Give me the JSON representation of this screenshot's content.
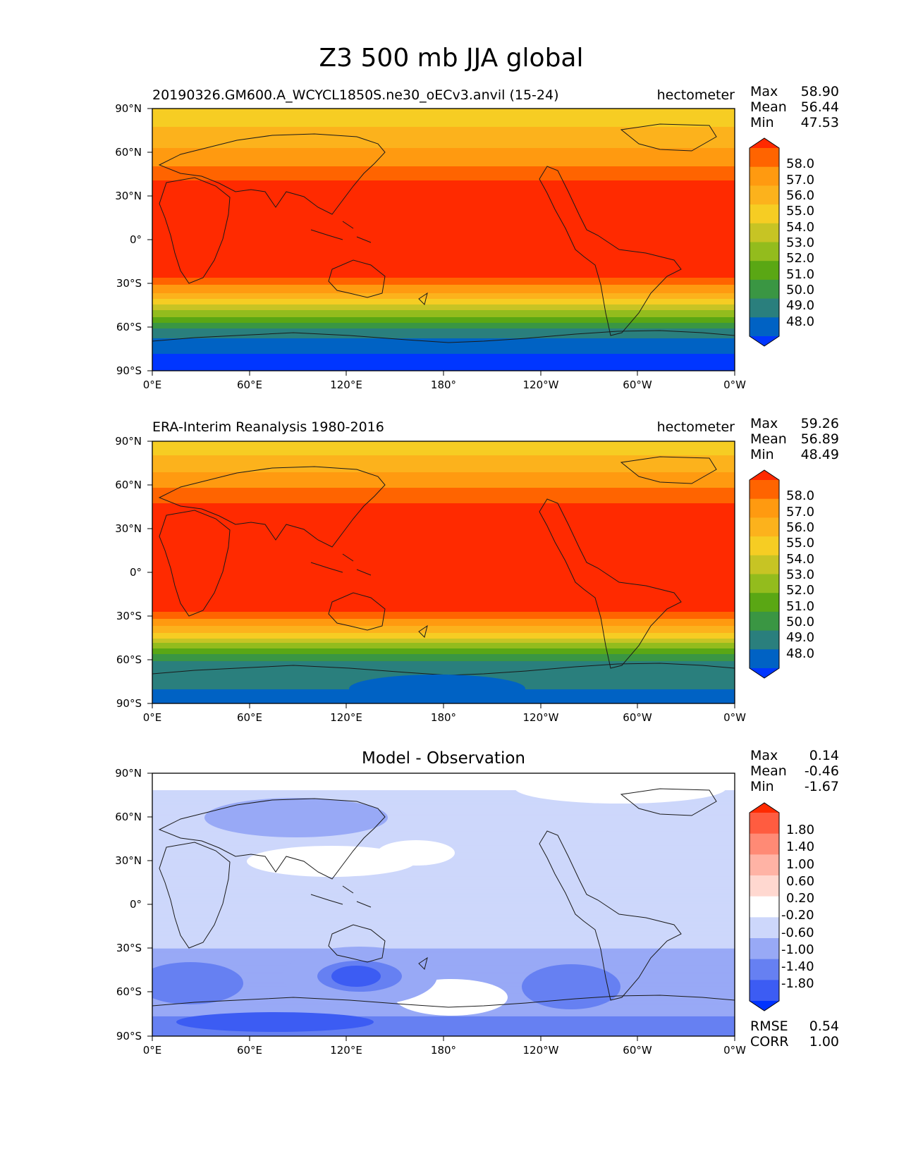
{
  "figure": {
    "title": "Z3 500 mb JJA global"
  },
  "stat_labels": {
    "max": "Max",
    "mean": "Mean",
    "min": "Min",
    "rmse": "RMSE",
    "corr": "CORR"
  },
  "chart_data": [
    {
      "type": "heatmap",
      "subtitle_left": "20190326.GM600.A_WCYCL1850S.ne30_oECv3.anvil (15-24)",
      "subtitle_right": "hectometer",
      "stats": {
        "max": "58.90",
        "mean": "56.44",
        "min": "47.53"
      },
      "x_ticks": [
        "0°E",
        "60°E",
        "120°E",
        "180°",
        "120°W",
        "60°W",
        "0°W"
      ],
      "y_ticks": [
        "90°N",
        "60°N",
        "30°N",
        "0°",
        "30°S",
        "60°S",
        "90°S"
      ],
      "colorbar": {
        "levels": [
          "58.0",
          "57.0",
          "56.0",
          "55.0",
          "54.0",
          "53.0",
          "52.0",
          "51.0",
          "50.0",
          "49.0",
          "48.0"
        ],
        "colors": [
          "#ff2a00",
          "#ff6400",
          "#ff9a10",
          "#fcb21c",
          "#f6cd23",
          "#c7c424",
          "#93bc1d",
          "#5aa714",
          "#3a9643",
          "#2a7f7d",
          "#0062c4",
          "#0036ff"
        ]
      },
      "zonal_profile": {
        "lat": [
          90,
          80,
          75,
          70,
          65,
          60,
          55,
          50,
          45,
          40,
          35,
          30,
          20,
          0,
          -20,
          -25,
          -28,
          -32,
          -36,
          -40,
          -44,
          -48,
          -52,
          -56,
          -60,
          -65,
          -70,
          -75,
          -80,
          -90
        ],
        "value": [
          54.6,
          54.8,
          55.2,
          55.6,
          55.9,
          56.2,
          56.6,
          57.0,
          57.5,
          58.1,
          58.5,
          58.7,
          58.9,
          58.9,
          58.6,
          58.2,
          57.6,
          56.9,
          56.1,
          55.2,
          54.2,
          53.2,
          52.2,
          51.2,
          50.2,
          49.3,
          48.7,
          48.3,
          47.9,
          47.6
        ]
      }
    },
    {
      "type": "heatmap",
      "subtitle_left": "ERA-Interim Reanalysis 1980-2016",
      "subtitle_right": "hectometer",
      "stats": {
        "max": "59.26",
        "mean": "56.89",
        "min": "48.49"
      },
      "x_ticks": [
        "0°E",
        "60°E",
        "120°E",
        "180°",
        "120°W",
        "60°W",
        "0°W"
      ],
      "y_ticks": [
        "90°N",
        "60°N",
        "30°N",
        "0°",
        "30°S",
        "60°S",
        "90°S"
      ],
      "colorbar": {
        "levels": [
          "58.0",
          "57.0",
          "56.0",
          "55.0",
          "54.0",
          "53.0",
          "52.0",
          "51.0",
          "50.0",
          "49.0",
          "48.0"
        ],
        "colors": [
          "#ff2a00",
          "#ff6400",
          "#ff9a10",
          "#fcb21c",
          "#f6cd23",
          "#c7c424",
          "#93bc1d",
          "#5aa714",
          "#3a9643",
          "#2a7f7d",
          "#0062c4",
          "#0036ff"
        ]
      },
      "zonal_profile": {
        "lat": [
          90,
          80,
          75,
          70,
          65,
          60,
          55,
          50,
          45,
          40,
          35,
          30,
          20,
          0,
          -20,
          -25,
          -28,
          -32,
          -36,
          -40,
          -44,
          -48,
          -52,
          -56,
          -60,
          -65,
          -70,
          -75,
          -80,
          -90
        ],
        "value": [
          54.7,
          55.0,
          55.5,
          55.9,
          56.3,
          56.8,
          57.3,
          57.8,
          58.2,
          58.6,
          58.9,
          59.1,
          59.2,
          59.2,
          58.9,
          58.5,
          57.8,
          57.0,
          56.2,
          55.3,
          54.3,
          53.2,
          52.2,
          51.1,
          50.2,
          49.5,
          49.2,
          49.1,
          49.0,
          48.9
        ]
      }
    },
    {
      "type": "heatmap",
      "subtitle_center": "Model - Observation",
      "stats": {
        "max": "0.14",
        "mean": "-0.46",
        "min": "-1.67"
      },
      "rmse": "0.54",
      "corr": "1.00",
      "x_ticks": [
        "0°E",
        "60°E",
        "120°E",
        "180°",
        "120°W",
        "60°W",
        "0°W"
      ],
      "y_ticks": [
        "90°N",
        "60°N",
        "30°N",
        "0°",
        "30°S",
        "60°S",
        "90°S"
      ],
      "colorbar": {
        "levels": [
          "1.80",
          "1.40",
          "1.00",
          "0.60",
          "0.20",
          "-0.20",
          "-0.60",
          "-1.00",
          "-1.40",
          "-1.80"
        ],
        "colors": [
          "#ff2a00",
          "#ff5c40",
          "#ff8a75",
          "#ffb3a5",
          "#ffd8d0",
          "#ffffff",
          "#cdd7fb",
          "#98a9f6",
          "#6680f2",
          "#3c5cf3",
          "#0033ff"
        ]
      },
      "zonal_profile": {
        "lat": [
          90,
          80,
          78,
          70,
          60,
          50,
          40,
          30,
          20,
          0,
          -20,
          -25,
          -30,
          -40,
          -50,
          -60,
          -70,
          -75,
          -80,
          -90
        ],
        "value": [
          0.0,
          0.0,
          -0.35,
          -0.4,
          -0.55,
          -0.45,
          -0.35,
          -0.25,
          -0.3,
          -0.35,
          -0.4,
          -0.5,
          -0.6,
          -0.75,
          -0.85,
          -0.75,
          -0.8,
          -0.95,
          -1.1,
          -1.1
        ]
      }
    }
  ]
}
